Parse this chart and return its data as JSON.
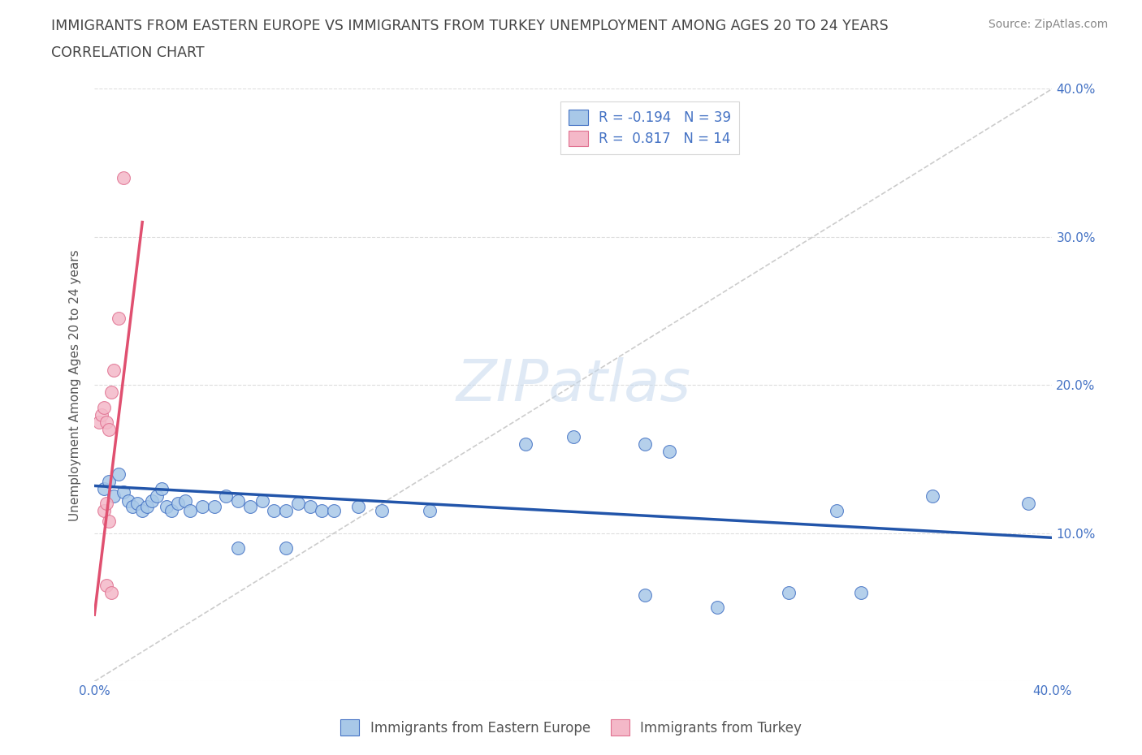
{
  "title_line1": "IMMIGRANTS FROM EASTERN EUROPE VS IMMIGRANTS FROM TURKEY UNEMPLOYMENT AMONG AGES 20 TO 24 YEARS",
  "title_line2": "CORRELATION CHART",
  "source": "Source: ZipAtlas.com",
  "ylabel": "Unemployment Among Ages 20 to 24 years",
  "xlim": [
    0.0,
    0.4
  ],
  "ylim": [
    0.0,
    0.4
  ],
  "background_color": "#ffffff",
  "watermark_text": "ZIPatlas",
  "blue_color": "#a8c8e8",
  "blue_edge_color": "#4472c4",
  "pink_color": "#f4b8c8",
  "pink_edge_color": "#e07090",
  "blue_line_color": "#2255aa",
  "pink_line_color": "#e05070",
  "diag_line_color": "#cccccc",
  "axis_label_color": "#4472c4",
  "title_color": "#444444",
  "source_color": "#888888",
  "ylabel_color": "#555555",
  "blue_scatter": [
    [
      0.004,
      0.13
    ],
    [
      0.006,
      0.135
    ],
    [
      0.008,
      0.125
    ],
    [
      0.01,
      0.14
    ],
    [
      0.012,
      0.128
    ],
    [
      0.014,
      0.122
    ],
    [
      0.016,
      0.118
    ],
    [
      0.018,
      0.12
    ],
    [
      0.02,
      0.115
    ],
    [
      0.022,
      0.118
    ],
    [
      0.024,
      0.122
    ],
    [
      0.026,
      0.125
    ],
    [
      0.028,
      0.13
    ],
    [
      0.03,
      0.118
    ],
    [
      0.032,
      0.115
    ],
    [
      0.035,
      0.12
    ],
    [
      0.038,
      0.122
    ],
    [
      0.04,
      0.115
    ],
    [
      0.045,
      0.118
    ],
    [
      0.05,
      0.118
    ],
    [
      0.055,
      0.125
    ],
    [
      0.06,
      0.122
    ],
    [
      0.065,
      0.118
    ],
    [
      0.07,
      0.122
    ],
    [
      0.075,
      0.115
    ],
    [
      0.08,
      0.115
    ],
    [
      0.085,
      0.12
    ],
    [
      0.09,
      0.118
    ],
    [
      0.095,
      0.115
    ],
    [
      0.1,
      0.115
    ],
    [
      0.11,
      0.118
    ],
    [
      0.12,
      0.115
    ],
    [
      0.14,
      0.115
    ],
    [
      0.18,
      0.16
    ],
    [
      0.2,
      0.165
    ],
    [
      0.23,
      0.16
    ],
    [
      0.24,
      0.155
    ],
    [
      0.31,
      0.115
    ],
    [
      0.35,
      0.125
    ],
    [
      0.39,
      0.12
    ],
    [
      0.06,
      0.09
    ],
    [
      0.08,
      0.09
    ],
    [
      0.23,
      0.058
    ],
    [
      0.26,
      0.05
    ],
    [
      0.29,
      0.06
    ],
    [
      0.32,
      0.06
    ]
  ],
  "pink_scatter": [
    [
      0.002,
      0.175
    ],
    [
      0.003,
      0.18
    ],
    [
      0.004,
      0.185
    ],
    [
      0.005,
      0.175
    ],
    [
      0.006,
      0.17
    ],
    [
      0.007,
      0.195
    ],
    [
      0.008,
      0.21
    ],
    [
      0.01,
      0.245
    ],
    [
      0.012,
      0.34
    ],
    [
      0.004,
      0.115
    ],
    [
      0.005,
      0.12
    ],
    [
      0.006,
      0.108
    ],
    [
      0.005,
      0.065
    ],
    [
      0.007,
      0.06
    ]
  ],
  "blue_trend_x": [
    0.0,
    0.4
  ],
  "blue_trend_y": [
    0.132,
    0.097
  ],
  "pink_trend_x": [
    0.0,
    0.02
  ],
  "pink_trend_y": [
    0.045,
    0.31
  ],
  "diag_line_x": [
    0.0,
    0.4
  ],
  "diag_line_y": [
    0.0,
    0.4
  ],
  "title_fontsize": 12.5,
  "subtitle_fontsize": 12.5,
  "tick_fontsize": 11,
  "label_fontsize": 11,
  "legend_fontsize": 12,
  "source_fontsize": 10,
  "scatter_size": 130
}
